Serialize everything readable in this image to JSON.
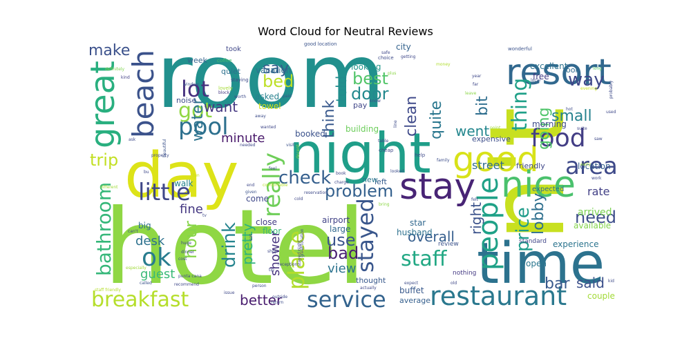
{
  "chart_data": {
    "type": "wordcloud",
    "title": "Word Cloud for Neutral Reviews",
    "palette": "viridis",
    "words": [
      {
        "text": "room",
        "color": "#21908d"
      },
      {
        "text": "hotel",
        "color": "#8fd744"
      },
      {
        "text": "n't",
        "color": "#c8e020"
      },
      {
        "text": "day",
        "color": "#dde318"
      },
      {
        "text": "night",
        "color": "#1f9e89"
      },
      {
        "text": "time",
        "color": "#2c728e"
      },
      {
        "text": "resort",
        "color": "#31688e"
      },
      {
        "text": "beach",
        "color": "#3b528b"
      },
      {
        "text": "good",
        "color": "#d8e219"
      },
      {
        "text": "great",
        "color": "#29af7f"
      },
      {
        "text": "stay",
        "color": "#482475"
      },
      {
        "text": "nice",
        "color": "#4ac16d"
      },
      {
        "text": "restaurant",
        "color": "#2a788e"
      },
      {
        "text": "food",
        "color": "#433e85"
      },
      {
        "text": "area",
        "color": "#3e4989"
      },
      {
        "text": "people",
        "color": "#1fa187"
      },
      {
        "text": "breakfast",
        "color": "#b5de2b"
      },
      {
        "text": "service",
        "color": "#33638d"
      },
      {
        "text": "pool",
        "color": "#2d708e"
      },
      {
        "text": "lot",
        "color": "#46307e"
      },
      {
        "text": "got",
        "color": "#90d743"
      },
      {
        "text": "little",
        "color": "#3f4788"
      },
      {
        "text": "really",
        "color": "#6ece58"
      },
      {
        "text": "stayed",
        "color": "#39568c"
      },
      {
        "text": "place",
        "color": "#b2dd2d"
      },
      {
        "text": "bathroom",
        "color": "#35b779"
      },
      {
        "text": "ok",
        "color": "#287c8e"
      },
      {
        "text": "staff",
        "color": "#22a884"
      },
      {
        "text": "check",
        "color": "#355f8d"
      },
      {
        "text": "problem",
        "color": "#34608d"
      },
      {
        "text": "make",
        "color": "#3b518b"
      },
      {
        "text": "thing",
        "color": "#1fa088"
      },
      {
        "text": "way",
        "color": "#3f4889"
      },
      {
        "text": "water",
        "color": "#2c738e"
      },
      {
        "text": "want",
        "color": "#453781"
      },
      {
        "text": "bed",
        "color": "#bddf26"
      },
      {
        "text": "best",
        "color": "#52c569"
      },
      {
        "text": "door",
        "color": "#23898e"
      },
      {
        "text": "trip",
        "color": "#c2df23"
      },
      {
        "text": "drink",
        "color": "#25848e"
      },
      {
        "text": "pretty",
        "color": "#2db27d"
      },
      {
        "text": "bad",
        "color": "#481f70"
      },
      {
        "text": "use",
        "color": "#3a548c"
      },
      {
        "text": "price",
        "color": "#1e9b8a"
      },
      {
        "text": "need",
        "color": "#3d4d8a"
      },
      {
        "text": "lobby",
        "color": "#2e6f8e"
      },
      {
        "text": "hour",
        "color": "#86d549"
      },
      {
        "text": "bar",
        "color": "#38598c"
      },
      {
        "text": "said",
        "color": "#3c508b"
      },
      {
        "text": "say",
        "color": "#365c8d"
      },
      {
        "text": "clean",
        "color": "#3f4a8a"
      },
      {
        "text": "think",
        "color": "#38588c"
      },
      {
        "text": "told",
        "color": "#228c8d"
      },
      {
        "text": "quite",
        "color": "#2a778e"
      },
      {
        "text": "bit",
        "color": "#2e6e8e"
      },
      {
        "text": "going",
        "color": "#4fc46a"
      },
      {
        "text": "small",
        "color": "#26828e"
      },
      {
        "text": "went",
        "color": "#24878e"
      },
      {
        "text": "street",
        "color": "#2f6c8e"
      },
      {
        "text": "fine",
        "color": "#453882"
      },
      {
        "text": "minute",
        "color": "#48186a"
      },
      {
        "text": "desk",
        "color": "#2d718e"
      },
      {
        "text": "guest",
        "color": "#39b977"
      },
      {
        "text": "better",
        "color": "#481c6e"
      },
      {
        "text": "view",
        "color": "#2c738e"
      },
      {
        "text": "overall",
        "color": "#355e8d"
      },
      {
        "text": "shower",
        "color": "#46327e"
      },
      {
        "text": "right",
        "color": "#3b528b"
      },
      {
        "text": "location",
        "color": "#355f8d"
      },
      {
        "text": "rate",
        "color": "#424086"
      },
      {
        "text": "arrived",
        "color": "#7ad151"
      },
      {
        "text": "available",
        "color": "#84d44b"
      },
      {
        "text": "experience",
        "color": "#2b748e"
      },
      {
        "text": "open",
        "color": "#2a768e"
      },
      {
        "text": "buffet",
        "color": "#38598c"
      },
      {
        "text": "average",
        "color": "#355f8d"
      },
      {
        "text": "couple",
        "color": "#a2da37"
      },
      {
        "text": "excellent",
        "color": "#2c728e"
      },
      {
        "text": "free",
        "color": "#433e85"
      },
      {
        "text": "look",
        "color": "#2f6b8e"
      },
      {
        "text": "morning",
        "color": "#3e4a89"
      },
      {
        "text": "friendly",
        "color": "#3f4788"
      },
      {
        "text": "expected",
        "color": "#2e6f8e"
      },
      {
        "text": "standard",
        "color": "#404588"
      },
      {
        "text": "review",
        "color": "#3b528b"
      },
      {
        "text": "nothing",
        "color": "#443983"
      },
      {
        "text": "building",
        "color": "#6ccd5a"
      },
      {
        "text": "booked",
        "color": "#3b528b"
      },
      {
        "text": "expensive",
        "color": "#3d4e8a"
      },
      {
        "text": "airport",
        "color": "#414287"
      },
      {
        "text": "large",
        "color": "#31678e"
      },
      {
        "text": "close",
        "color": "#433d84"
      },
      {
        "text": "floor",
        "color": "#37b878"
      },
      {
        "text": "husband",
        "color": "#2d718e"
      },
      {
        "text": "star",
        "color": "#31688e"
      },
      {
        "text": "come",
        "color": "#3f4889"
      },
      {
        "text": "walk",
        "color": "#25838e"
      },
      {
        "text": "big",
        "color": "#2e6e8e"
      },
      {
        "text": "vacation",
        "color": "#2e6f8e"
      },
      {
        "text": "asked",
        "color": "#27808e"
      },
      {
        "text": "towel",
        "color": "#d2e21b"
      },
      {
        "text": "noise",
        "color": "#3d4d8a"
      },
      {
        "text": "quiet",
        "color": "#2d708e"
      },
      {
        "text": "week",
        "color": "#33638d"
      },
      {
        "text": "took",
        "color": "#3f4788"
      },
      {
        "text": "city",
        "color": "#33628d"
      },
      {
        "text": "looking",
        "color": "#1f968b"
      },
      {
        "text": "pay",
        "color": "#404688"
      },
      {
        "text": "thought",
        "color": "#38598c"
      },
      {
        "text": "left",
        "color": "#365c8d"
      },
      {
        "text": "new",
        "color": "#2b758e"
      },
      {
        "text": "good location",
        "color": "#3a538b"
      },
      {
        "text": "coffee",
        "color": "#48c16e"
      },
      {
        "text": "staying",
        "color": "#3e4c8a"
      },
      {
        "text": "definitely",
        "color": "#7fd34e"
      },
      {
        "text": "kind",
        "color": "#424186"
      },
      {
        "text": "lovely",
        "color": "#a5db36"
      },
      {
        "text": "choice",
        "color": "#3e4a89"
      },
      {
        "text": "getting",
        "color": "#3f4889"
      },
      {
        "text": "money",
        "color": "#b0dd2f"
      },
      {
        "text": "plus",
        "color": "#8bd646"
      },
      {
        "text": "wonderful",
        "color": "#3b528b"
      },
      {
        "text": "year",
        "color": "#3f4889"
      },
      {
        "text": "far",
        "color": "#3f4788"
      },
      {
        "text": "long",
        "color": "#56c667"
      },
      {
        "text": "used",
        "color": "#3f4889"
      },
      {
        "text": "probably",
        "color": "#3e4a89"
      },
      {
        "text": "evening",
        "color": "#cae11f"
      },
      {
        "text": "local",
        "color": "#3b528b"
      },
      {
        "text": "window",
        "color": "#3a548c"
      },
      {
        "text": "worth",
        "color": "#3e4c8a"
      },
      {
        "text": "block",
        "color": "#453781"
      },
      {
        "text": "paid",
        "color": "#3b528b"
      },
      {
        "text": "know",
        "color": "#3f4889"
      },
      {
        "text": "leave",
        "color": "#8bd646"
      },
      {
        "text": "hot",
        "color": "#3e4c8a"
      },
      {
        "text": "suite",
        "color": "#404688"
      },
      {
        "text": "saw",
        "color": "#3e4a89"
      },
      {
        "text": "away",
        "color": "#3d4d8a"
      },
      {
        "text": "wanted",
        "color": "#3f4788"
      },
      {
        "text": "ask",
        "color": "#3e4a89"
      },
      {
        "text": "needed",
        "color": "#3f4889"
      },
      {
        "text": "visit",
        "color": "#3b528b"
      },
      {
        "text": "decent",
        "color": "#8bd646"
      },
      {
        "text": "point",
        "color": "#a0da39"
      },
      {
        "text": "line",
        "color": "#3e4c8a"
      },
      {
        "text": "cheap",
        "color": "#3f4788"
      },
      {
        "text": "table",
        "color": "#3f4889"
      },
      {
        "text": "help",
        "color": "#3e4a89"
      },
      {
        "text": "family",
        "color": "#3d4d8a"
      },
      {
        "text": "early",
        "color": "#a0da39"
      },
      {
        "text": "work",
        "color": "#3f4889"
      },
      {
        "text": "property",
        "color": "#3e4c8a"
      },
      {
        "text": "beautiful",
        "color": "#3b528b"
      },
      {
        "text": "feel",
        "color": "#3e4a89"
      },
      {
        "text": "book",
        "color": "#3f4788"
      },
      {
        "text": "looked",
        "color": "#3d4d8a"
      },
      {
        "text": "charge",
        "color": "#3f4889"
      },
      {
        "text": "comfortable",
        "color": "#b5de2b"
      },
      {
        "text": "reservation",
        "color": "#3e4a89"
      },
      {
        "text": "cold",
        "color": "#3f4788"
      },
      {
        "text": "bring",
        "color": "#8bd646"
      },
      {
        "text": "felt",
        "color": "#3e4c8a"
      },
      {
        "text": "end",
        "color": "#3f4889"
      },
      {
        "text": "given",
        "color": "#3b528b"
      },
      {
        "text": "fun",
        "color": "#cae11f"
      },
      {
        "text": "bu",
        "color": "#3f4889"
      },
      {
        "text": "different",
        "color": "#a0da39"
      },
      {
        "text": "tv",
        "color": "#3e4a89"
      },
      {
        "text": "huge",
        "color": "#3f4788"
      },
      {
        "text": "can't",
        "color": "#3e4c8a"
      },
      {
        "text": "especially",
        "color": "#a0da39"
      },
      {
        "text": "dinner",
        "color": "#3f4889"
      },
      {
        "text": "cost",
        "color": "#3e4a89"
      },
      {
        "text": "called",
        "color": "#3b528b"
      },
      {
        "text": "recommend",
        "color": "#3f4788"
      },
      {
        "text": "punta cana",
        "color": "#3e4c8a"
      },
      {
        "text": "shop",
        "color": "#3f4889"
      },
      {
        "text": "eat",
        "color": "#3e4a89"
      },
      {
        "text": "tip",
        "color": "#3f4788"
      },
      {
        "text": "person",
        "color": "#3e4c8a"
      },
      {
        "text": "issue",
        "color": "#3f4889"
      },
      {
        "text": "outside",
        "color": "#3e4a89"
      },
      {
        "text": "return",
        "color": "#3d4d8a"
      },
      {
        "text": "staff friendly",
        "color": "#b5de2b"
      },
      {
        "text": "great location",
        "color": "#3e4c8a"
      },
      {
        "text": "stayed night",
        "color": "#3f4788"
      },
      {
        "text": "reception",
        "color": "#3e4a89"
      },
      {
        "text": "actually",
        "color": "#3f4889"
      },
      {
        "text": "expect",
        "color": "#3e4c8a"
      },
      {
        "text": "old",
        "color": "#3f4788"
      },
      {
        "text": "kid",
        "color": "#3e4a89"
      },
      {
        "text": "safe",
        "color": "#3f4889"
      }
    ]
  }
}
